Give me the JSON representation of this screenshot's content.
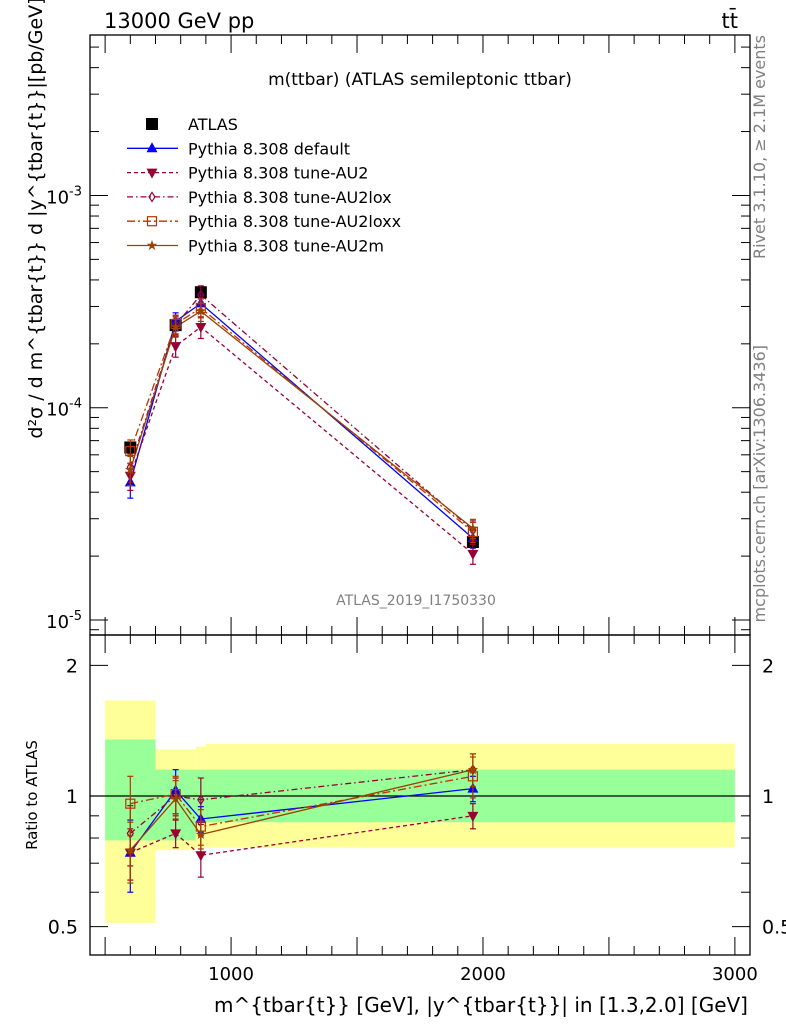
{
  "header": {
    "left": "13000 GeV pp",
    "right": "tt̄"
  },
  "side_labels": {
    "rivet": "Rivet 3.1.10, ≥ 2.1M events",
    "mcplots": "mcplots.cern.ch [arXiv:1306.3436]"
  },
  "chart_data": [
    {
      "type": "line",
      "title": "m(ttbar) (ATLAS semileptonic ttbar)",
      "watermark": "ATLAS_2019_I1750330",
      "ylabel_main": "d²σ / d m^{tbar{t}} d |y^{tbar{t}}|[pb/GeV]",
      "xlabel": "m^{tbar{t}} [GeV], |y^{tbar{t}}| in [1.3,2.0] [GeV]",
      "x_scale": "linear",
      "y_scale": "log",
      "xlim": [
        440,
        3060
      ],
      "ylim": [
        8.5e-06,
        0.0057
      ],
      "x_ticks": [
        "1000",
        "2000",
        "3000"
      ],
      "y_ticks": [
        "10^-5",
        "10^-4",
        "10^-3"
      ],
      "legend_position": "top-left",
      "x": [
        600,
        780,
        880,
        1960
      ],
      "x_bins": [
        [
          500,
          700
        ],
        [
          700,
          860
        ],
        [
          860,
          900
        ],
        [
          900,
          3000
        ]
      ],
      "series": [
        {
          "name": "ATLAS",
          "color": "#000000",
          "marker": "square",
          "dash": "none",
          "values": [
            6.5e-05,
            0.000245,
            0.00035,
            2.33e-05
          ]
        },
        {
          "name": "Pythia 8.308 default",
          "color": "#0000ff",
          "marker": "triangle-up",
          "dash": "solid",
          "values": [
            4.45e-05,
            0.000255,
            0.00031,
            2.43e-05
          ],
          "errors": [
            7e-06,
            2.5e-05,
            3e-05,
            2.5e-06
          ]
        },
        {
          "name": "Pythia 8.308 tune-AU2",
          "color": "#990033",
          "marker": "triangle-down",
          "dash": "4,3",
          "values": [
            4.78e-05,
            0.000195,
            0.00024,
            2.05e-05
          ],
          "errors": [
            7e-06,
            2.2e-05,
            2.8e-05,
            2.2e-06
          ]
        },
        {
          "name": "Pythia 8.308 tune-AU2lox",
          "color": "#990033",
          "marker": "diamond",
          "dash": "6,3,1.5,3",
          "values": [
            5.25e-05,
            0.000245,
            0.00034,
            2.65e-05
          ],
          "errors": [
            8e-06,
            2.5e-05,
            3.5e-05,
            2.8e-06
          ]
        },
        {
          "name": "Pythia 8.308 tune-AU2loxx",
          "color": "#bb3300",
          "marker": "square-open",
          "dash": "8,3,2,3",
          "values": [
            6.25e-05,
            0.000248,
            0.000295,
            2.6e-05
          ],
          "errors": [
            8e-06,
            2.5e-05,
            3e-05,
            2.8e-06
          ]
        },
        {
          "name": "Pythia 8.308 tune-AU2m",
          "color": "#994400",
          "marker": "star",
          "dash": "solid",
          "values": [
            5.1e-05,
            0.00024,
            0.000285,
            2.7e-05
          ],
          "errors": [
            8e-06,
            2.5e-05,
            3e-05,
            2.8e-06
          ]
        }
      ]
    },
    {
      "type": "line",
      "ylabel": "Ratio to ATLAS",
      "y_scale": "log",
      "ylim": [
        0.43,
        2.35
      ],
      "y_ticks": [
        "0.5",
        "1",
        "2"
      ],
      "reference": 1,
      "bands": {
        "stat_color": "#99ff99",
        "total_color": "#ffff99",
        "x_bins": [
          [
            500,
            700
          ],
          [
            700,
            860
          ],
          [
            860,
            900
          ],
          [
            900,
            3000
          ]
        ],
        "inner": [
          [
            0.79,
            1.35
          ],
          [
            0.79,
            1.15
          ],
          [
            0.87,
            1.15
          ],
          [
            0.87,
            1.15
          ]
        ],
        "outer": [
          [
            0.51,
            1.66
          ],
          [
            0.75,
            1.28
          ],
          [
            0.76,
            1.3
          ],
          [
            0.76,
            1.32
          ]
        ]
      },
      "series": [
        {
          "name": "Pythia 8.308 default",
          "values": [
            0.74,
            1.03,
            0.885,
            1.04
          ],
          "errors": [
            0.14,
            0.12,
            0.06,
            0.07
          ]
        },
        {
          "name": "Pythia 8.308 tune-AU2",
          "values": [
            0.74,
            0.82,
            0.73,
            0.9
          ],
          "errors": [
            0.1,
            0.06,
            0.08,
            0.06
          ]
        },
        {
          "name": "Pythia 8.308 tune-AU2lox",
          "values": [
            0.82,
            1.0,
            0.98,
            1.15
          ],
          "errors": [
            0.13,
            0.1,
            0.12,
            0.1
          ]
        },
        {
          "name": "Pythia 8.308 tune-AU2loxx",
          "values": [
            0.96,
            1.01,
            0.85,
            1.11
          ],
          "errors": [
            0.15,
            0.1,
            0.08,
            0.12
          ]
        },
        {
          "name": "Pythia 8.308 tune-AU2m",
          "values": [
            0.75,
            0.985,
            0.815,
            1.15
          ],
          "errors": [
            0.12,
            0.1,
            0.06,
            0.1
          ]
        }
      ]
    }
  ]
}
